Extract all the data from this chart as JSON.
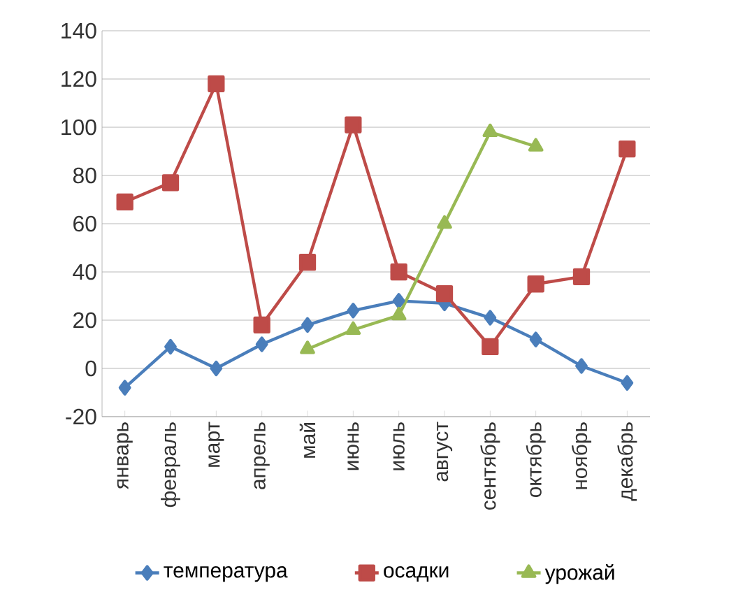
{
  "chart_data": {
    "type": "line",
    "categories": [
      "январь",
      "февраль",
      "март",
      "апрель",
      "май",
      "июнь",
      "июль",
      "август",
      "сентябрь",
      "октябрь",
      "ноябрь",
      "декабрь"
    ],
    "series": [
      {
        "name": "температура",
        "color": "#4a7ebb",
        "marker": "diamond",
        "values": [
          -8,
          9,
          0,
          10,
          18,
          24,
          28,
          27,
          21,
          12,
          1,
          -6
        ]
      },
      {
        "name": "осадки",
        "color": "#be4b48",
        "marker": "square",
        "values": [
          69,
          77,
          118,
          18,
          44,
          101,
          40,
          31,
          9,
          35,
          38,
          91
        ]
      },
      {
        "name": "урожай",
        "color": "#98b954",
        "marker": "triangle",
        "values": [
          null,
          null,
          null,
          null,
          8,
          16,
          22,
          60,
          98,
          92,
          null,
          null
        ]
      }
    ],
    "ylim": [
      -20,
      140
    ],
    "yticks": [
      -20,
      0,
      20,
      40,
      60,
      80,
      100,
      120,
      140
    ],
    "grid": "y",
    "legend": "bottom",
    "line_style": "solid"
  }
}
